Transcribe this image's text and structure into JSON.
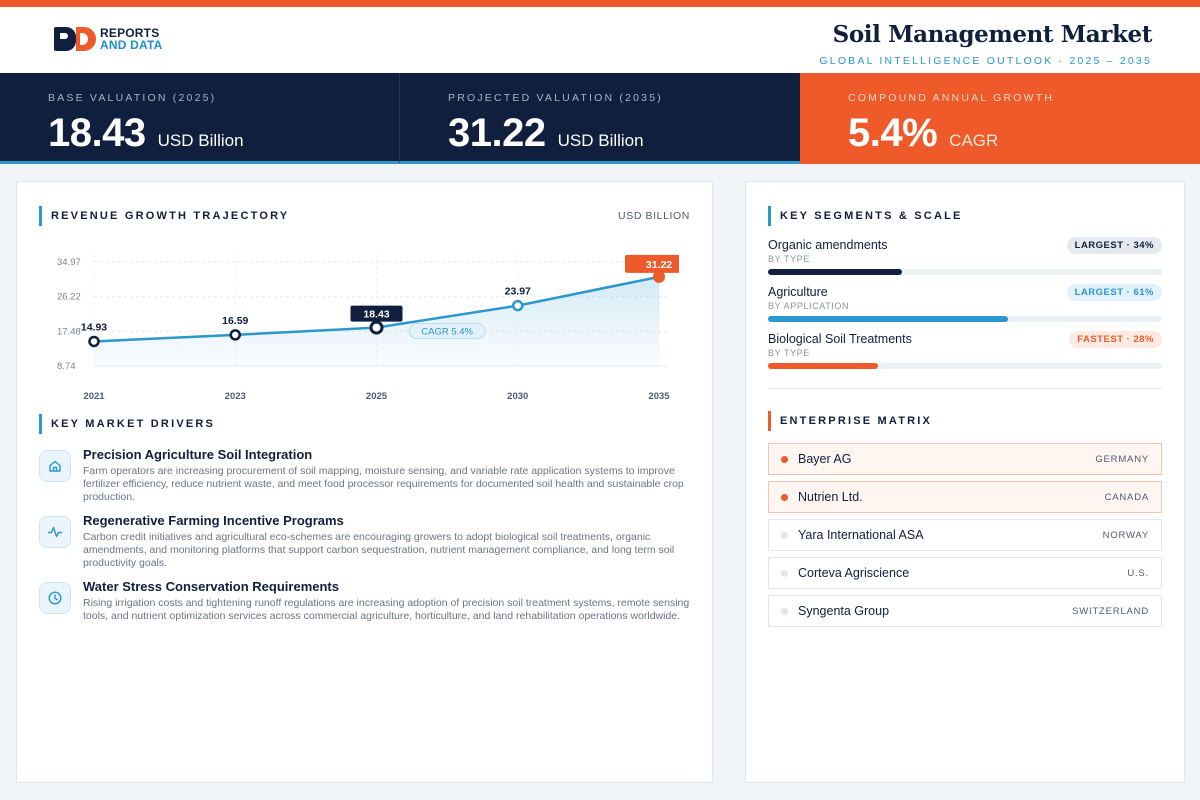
{
  "brand": {
    "line1": "REPORTS",
    "line2": "AND DATA"
  },
  "header": {
    "title": "Soil Management Market",
    "subtitle": "GLOBAL INTELLIGENCE OUTLOOK  ·  2025 – 2035"
  },
  "kpis": [
    {
      "label": "BASE VALUATION (2025)",
      "value": "18.43",
      "unit": "USD Billion"
    },
    {
      "label": "PROJECTED VALUATION (2035)",
      "value": "31.22",
      "unit": "USD Billion"
    },
    {
      "label": "COMPOUND ANNUAL GROWTH",
      "value": "5.4%",
      "unit": "CAGR"
    }
  ],
  "revenue": {
    "title": "REVENUE GROWTH TRAJECTORY",
    "unit": "USD BILLION",
    "cagr_tag": "CAGR 5.4%"
  },
  "chart_data": {
    "type": "area",
    "categories": [
      "2021",
      "2023",
      "2025",
      "2030",
      "2035"
    ],
    "values": [
      14.93,
      16.59,
      18.43,
      23.97,
      31.22
    ],
    "value_labels": [
      "14.93",
      "16.59",
      "18.43",
      "23.97",
      "31.22"
    ],
    "yticks": [
      8.74,
      17.48,
      26.22,
      34.97
    ],
    "ytick_labels": [
      "8.74",
      "17.48",
      "26.22",
      "34.97"
    ],
    "ylim": [
      8.74,
      34.97
    ],
    "highlighted": {
      "2025": "base",
      "2035": "projected"
    },
    "colors": {
      "line": "#2a97cf",
      "base": "#0f1f3d",
      "projected": "#ee5a2a"
    }
  },
  "drivers": {
    "title": "KEY MARKET DRIVERS",
    "items": [
      {
        "icon": "home-icon",
        "title": "Precision Agriculture Soil Integration",
        "text": "Farm operators are increasing procurement of soil mapping, moisture sensing, and variable rate application systems to improve fertilizer efficiency, reduce nutrient waste, and meet food processor requirements for documented soil health and sustainable crop production."
      },
      {
        "icon": "activity-icon",
        "title": "Regenerative Farming Incentive Programs",
        "text": "Carbon credit initiatives and agricultural eco-schemes are encouraging growers to adopt biological soil treatments, organic amendments, and monitoring platforms that support carbon sequestration, nutrient management compliance, and long term soil productivity goals."
      },
      {
        "icon": "clock-icon",
        "title": "Water Stress Conservation Requirements",
        "text": "Rising irrigation costs and tightening runoff regulations are increasing adoption of precision soil treatment systems, remote sensing tools, and nutrient optimization services across commercial agriculture, horticulture, and land rehabilitation operations worldwide."
      }
    ]
  },
  "segments": {
    "title": "KEY SEGMENTS & SCALE",
    "items": [
      {
        "name": "Organic amendments",
        "type": "BY TYPE",
        "badge": "LARGEST · 34%",
        "share": 0.34,
        "color": "#0f1f3d"
      },
      {
        "name": "Agriculture",
        "type": "BY APPLICATION",
        "badge": "LARGEST · 61%",
        "share": 0.61,
        "color": "#2a97cf"
      },
      {
        "name": "Biological Soil Treatments",
        "type": "BY TYPE",
        "badge": "FASTEST · 28%",
        "share": 0.28,
        "color": "#ee5a2a"
      }
    ]
  },
  "matrix": {
    "title": "ENTERPRISE MATRIX",
    "items": [
      {
        "name": "Bayer AG",
        "country": "GERMANY",
        "highlight": true
      },
      {
        "name": "Nutrien Ltd.",
        "country": "CANADA",
        "highlight": true
      },
      {
        "name": "Yara International ASA",
        "country": "NORWAY",
        "highlight": false
      },
      {
        "name": "Corteva Agriscience",
        "country": "U.S.",
        "highlight": false
      },
      {
        "name": "Syngenta Group",
        "country": "SWITZERLAND",
        "highlight": false
      }
    ]
  }
}
